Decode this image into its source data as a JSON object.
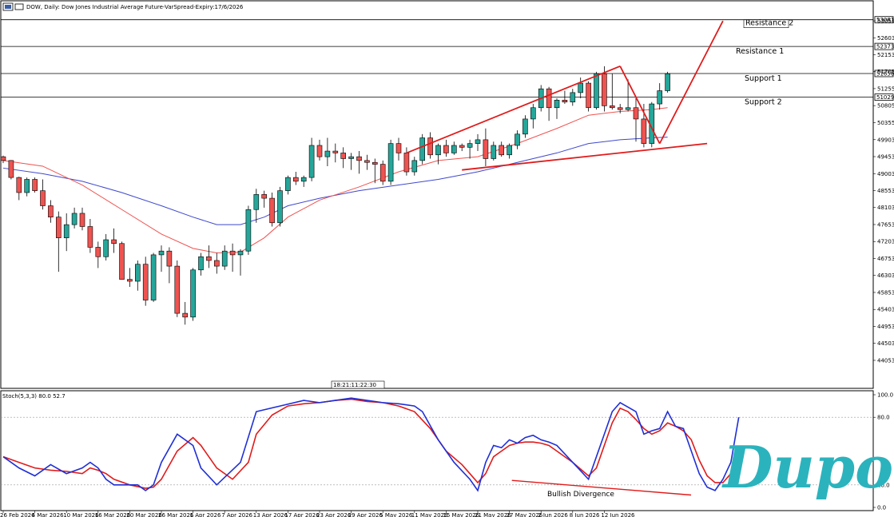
{
  "chart_data": {
    "type": "candlestick",
    "title": "DOW, Daily: Dow Jones Industrial Average Future-VarSpread-Expiry:17/6/2026",
    "colors": {
      "bull": "#26a69a",
      "bear": "#ef5350",
      "ma_fast": "#ef5350",
      "ma_slow": "#3f48cc",
      "stoch_k": "#1f2fd6",
      "stoch_d": "#e01b1b",
      "trend": "#e01b1b"
    },
    "y_axis": {
      "ticks": [
        53051,
        52603,
        52153,
        51705,
        51255,
        50805,
        50355,
        49903,
        49453,
        49003,
        48553,
        48103,
        47653,
        47203,
        46753,
        46303,
        45853,
        45403,
        44953,
        44503,
        44053
      ],
      "ylim": [
        43650,
        53350
      ],
      "highlight": [
        {
          "text": "53081",
          "value": 53081
        },
        {
          "text": "52373",
          "value": 52373
        },
        {
          "text": "51656",
          "value": 51656
        },
        {
          "text": "51029",
          "value": 51029
        }
      ]
    },
    "x_axis": {
      "labels": [
        {
          "text": "26 Feb 2026",
          "index": 0
        },
        {
          "text": "4 Mar 2026",
          "index": 4
        },
        {
          "text": "10 Mar 2026",
          "index": 8
        },
        {
          "text": "16 Mar 2026",
          "index": 12
        },
        {
          "text": "20 Mar 2026",
          "index": 16
        },
        {
          "text": "26 Mar 2026",
          "index": 20
        },
        {
          "text": "1 Apr 2026",
          "index": 24
        },
        {
          "text": "7 Apr 2026",
          "index": 28
        },
        {
          "text": "13 Apr 2026",
          "index": 32
        },
        {
          "text": "17 Apr 2026",
          "index": 36
        },
        {
          "text": "23 Apr 2026",
          "index": 40
        },
        {
          "text": "29 Apr 2026",
          "index": 44
        },
        {
          "text": "5 May 2026",
          "index": 48
        },
        {
          "text": "11 May 2026",
          "index": 52
        },
        {
          "text": "15 May 2026",
          "index": 56
        },
        {
          "text": "21 May 2026",
          "index": 60
        },
        {
          "text": "27 May 2026",
          "index": 64
        },
        {
          "text": "2 Jun 2026",
          "index": 68
        },
        {
          "text": "8 Jun 2026",
          "index": 72
        },
        {
          "text": "12 Jun 2026",
          "index": 76
        }
      ]
    },
    "candles": [
      [
        49450,
        49480,
        49280,
        49350
      ],
      [
        49350,
        49360,
        48850,
        48900
      ],
      [
        48900,
        48920,
        48300,
        48500
      ],
      [
        48500,
        48900,
        48400,
        48850
      ],
      [
        48850,
        48900,
        48500,
        48550
      ],
      [
        48550,
        48850,
        48050,
        48150
      ],
      [
        48150,
        48300,
        47700,
        47850
      ],
      [
        47850,
        48000,
        46400,
        47300
      ],
      [
        47300,
        47950,
        46950,
        47650
      ],
      [
        47650,
        48100,
        47550,
        47950
      ],
      [
        47950,
        48100,
        47500,
        47600
      ],
      [
        47600,
        47800,
        46900,
        47050
      ],
      [
        47050,
        47200,
        46500,
        46800
      ],
      [
        46800,
        47400,
        46700,
        47250
      ],
      [
        47250,
        47550,
        46900,
        47150
      ],
      [
        47150,
        47200,
        46200,
        46200
      ],
      [
        46200,
        46500,
        46000,
        46150
      ],
      [
        46150,
        46700,
        45900,
        46600
      ],
      [
        46600,
        46800,
        45500,
        45650
      ],
      [
        45650,
        46900,
        45600,
        46850
      ],
      [
        46850,
        47100,
        46400,
        46950
      ],
      [
        46950,
        47050,
        46100,
        46550
      ],
      [
        46550,
        46700,
        45200,
        45300
      ],
      [
        45300,
        45600,
        45000,
        45200
      ],
      [
        45200,
        46500,
        45100,
        46450
      ],
      [
        46450,
        46900,
        46300,
        46800
      ],
      [
        46800,
        47100,
        46500,
        46700
      ],
      [
        46700,
        46900,
        46350,
        46550
      ],
      [
        46550,
        47100,
        46450,
        46950
      ],
      [
        46950,
        47150,
        46400,
        46850
      ],
      [
        46850,
        47000,
        46300,
        46950
      ],
      [
        46950,
        48150,
        46850,
        48050
      ],
      [
        48050,
        48600,
        47700,
        48450
      ],
      [
        48450,
        48550,
        48100,
        48350
      ],
      [
        48350,
        48500,
        47600,
        47700
      ],
      [
        47700,
        48650,
        47600,
        48550
      ],
      [
        48550,
        48950,
        48450,
        48900
      ],
      [
        48900,
        49050,
        48700,
        48800
      ],
      [
        48800,
        48950,
        48650,
        48900
      ],
      [
        48900,
        49950,
        48800,
        49750
      ],
      [
        49750,
        49900,
        49350,
        49450
      ],
      [
        49450,
        49950,
        49200,
        49600
      ],
      [
        49600,
        49800,
        49300,
        49550
      ],
      [
        49550,
        49700,
        49150,
        49400
      ],
      [
        49400,
        49550,
        49100,
        49450
      ],
      [
        49450,
        49600,
        49000,
        49350
      ],
      [
        49350,
        49500,
        49100,
        49300
      ],
      [
        49300,
        49400,
        48750,
        49250
      ],
      [
        49250,
        49350,
        48700,
        48800
      ],
      [
        48800,
        49900,
        48700,
        49800
      ],
      [
        49800,
        49950,
        49350,
        49550
      ],
      [
        49550,
        49700,
        48950,
        49050
      ],
      [
        49050,
        49450,
        48950,
        49350
      ],
      [
        49350,
        50050,
        49250,
        49950
      ],
      [
        49950,
        50100,
        49400,
        49500
      ],
      [
        49500,
        49800,
        49250,
        49750
      ],
      [
        49750,
        49900,
        49450,
        49550
      ],
      [
        49550,
        49850,
        49500,
        49750
      ],
      [
        49750,
        49800,
        49600,
        49700
      ],
      [
        49700,
        49900,
        49400,
        49800
      ],
      [
        49800,
        50050,
        49600,
        49900
      ],
      [
        49900,
        50200,
        49200,
        49400
      ],
      [
        49400,
        49850,
        49350,
        49750
      ],
      [
        49750,
        49850,
        49450,
        49500
      ],
      [
        49500,
        49800,
        49400,
        49750
      ],
      [
        49750,
        50150,
        49650,
        50050
      ],
      [
        50050,
        50550,
        49950,
        50450
      ],
      [
        50450,
        50850,
        50200,
        50750
      ],
      [
        50750,
        51350,
        50650,
        51250
      ],
      [
        51250,
        51300,
        50400,
        50750
      ],
      [
        50750,
        51000,
        50450,
        50950
      ],
      [
        50950,
        51200,
        50850,
        50900
      ],
      [
        50900,
        51250,
        50800,
        51150
      ],
      [
        51150,
        51550,
        51000,
        51400
      ],
      [
        51400,
        51450,
        50650,
        50750
      ],
      [
        50750,
        51700,
        50700,
        51650
      ],
      [
        51650,
        51850,
        50650,
        50800
      ],
      [
        50800,
        51650,
        50700,
        50750
      ],
      [
        50750,
        50850,
        50600,
        50700
      ],
      [
        50700,
        51500,
        50650,
        50750
      ],
      [
        50750,
        51000,
        49850,
        50450
      ],
      [
        50450,
        50850,
        49700,
        49800
      ],
      [
        49800,
        50900,
        49700,
        50850
      ],
      [
        50850,
        51400,
        50700,
        51200
      ],
      [
        51200,
        51700,
        51150,
        51650
      ]
    ],
    "ma_fast": [
      [
        0,
        49350
      ],
      [
        5,
        49200
      ],
      [
        10,
        48700
      ],
      [
        15,
        48050
      ],
      [
        20,
        47400
      ],
      [
        24,
        47020
      ],
      [
        27,
        46900
      ],
      [
        30,
        46920
      ],
      [
        33,
        47300
      ],
      [
        36,
        47850
      ],
      [
        40,
        48300
      ],
      [
        45,
        48650
      ],
      [
        50,
        49050
      ],
      [
        55,
        49350
      ],
      [
        60,
        49450
      ],
      [
        65,
        49800
      ],
      [
        70,
        50200
      ],
      [
        74,
        50550
      ],
      [
        78,
        50650
      ],
      [
        82,
        50700
      ],
      [
        84,
        50750
      ]
    ],
    "ma_slow": [
      [
        0,
        49150
      ],
      [
        5,
        49000
      ],
      [
        10,
        48800
      ],
      [
        15,
        48500
      ],
      [
        20,
        48150
      ],
      [
        24,
        47850
      ],
      [
        27,
        47650
      ],
      [
        30,
        47650
      ],
      [
        33,
        47850
      ],
      [
        36,
        48150
      ],
      [
        40,
        48350
      ],
      [
        45,
        48550
      ],
      [
        50,
        48700
      ],
      [
        55,
        48850
      ],
      [
        60,
        49050
      ],
      [
        65,
        49300
      ],
      [
        70,
        49550
      ],
      [
        74,
        49800
      ],
      [
        78,
        49900
      ],
      [
        82,
        49950
      ],
      [
        84,
        49970
      ]
    ],
    "levels": [
      {
        "name": "Resistance 2",
        "value": 53081
      },
      {
        "name": "Resistance 1",
        "value": 52373
      },
      {
        "name": "Support 1",
        "value": 51656
      },
      {
        "name": "Support 2",
        "value": 51029
      }
    ],
    "trendlines": [
      {
        "points": [
          [
            51,
            49550
          ],
          [
            78,
            51850
          ]
        ]
      },
      {
        "points": [
          [
            78,
            51850
          ],
          [
            83,
            49800
          ]
        ]
      },
      {
        "points": [
          [
            83,
            49800
          ],
          [
            91,
            53050
          ]
        ]
      },
      {
        "points": [
          [
            58,
            49100
          ],
          [
            89,
            49800
          ]
        ]
      }
    ],
    "time_marker": "18:21:11:22:30",
    "stochastic": {
      "label": "Stoch(5,3,3) 80.0 52.7",
      "ticks": [
        "100.0",
        "80.0",
        "20.0",
        "0.0"
      ],
      "k": [
        [
          0,
          45
        ],
        [
          2,
          35
        ],
        [
          4,
          28
        ],
        [
          6,
          38
        ],
        [
          8,
          30
        ],
        [
          10,
          35
        ],
        [
          11,
          40
        ],
        [
          12,
          35
        ],
        [
          13,
          25
        ],
        [
          14,
          20
        ],
        [
          15,
          20
        ],
        [
          17,
          20
        ],
        [
          18,
          15
        ],
        [
          19,
          20
        ],
        [
          20,
          40
        ],
        [
          22,
          65
        ],
        [
          24,
          55
        ],
        [
          25,
          35
        ],
        [
          27,
          20
        ],
        [
          30,
          40
        ],
        [
          32,
          85
        ],
        [
          35,
          90
        ],
        [
          38,
          95
        ],
        [
          40,
          93
        ],
        [
          42,
          95
        ],
        [
          44,
          97
        ],
        [
          46,
          95
        ],
        [
          48,
          93
        ],
        [
          50,
          92
        ],
        [
          52,
          90
        ],
        [
          53,
          85
        ],
        [
          55,
          60
        ],
        [
          57,
          40
        ],
        [
          59,
          25
        ],
        [
          60,
          15
        ],
        [
          61,
          40
        ],
        [
          62,
          55
        ],
        [
          63,
          53
        ],
        [
          64,
          60
        ],
        [
          65,
          57
        ],
        [
          66,
          62
        ],
        [
          67,
          64
        ],
        [
          68,
          60
        ],
        [
          69,
          58
        ],
        [
          70,
          55
        ],
        [
          72,
          40
        ],
        [
          74,
          25
        ],
        [
          75,
          45
        ],
        [
          76,
          65
        ],
        [
          77,
          85
        ],
        [
          78,
          93
        ],
        [
          80,
          85
        ],
        [
          81,
          65
        ],
        [
          82,
          68
        ],
        [
          83,
          70
        ],
        [
          84,
          85
        ],
        [
          85,
          72
        ],
        [
          86,
          70
        ],
        [
          87,
          50
        ],
        [
          88,
          30
        ],
        [
          89,
          18
        ],
        [
          90,
          15
        ],
        [
          91,
          25
        ],
        [
          92,
          40
        ],
        [
          93,
          80
        ]
      ],
      "d": [
        [
          0,
          45
        ],
        [
          2,
          40
        ],
        [
          4,
          35
        ],
        [
          6,
          33
        ],
        [
          8,
          32
        ],
        [
          10,
          30
        ],
        [
          11,
          35
        ],
        [
          12,
          33
        ],
        [
          13,
          30
        ],
        [
          14,
          25
        ],
        [
          16,
          20
        ],
        [
          18,
          17
        ],
        [
          19,
          18
        ],
        [
          20,
          25
        ],
        [
          22,
          50
        ],
        [
          24,
          62
        ],
        [
          25,
          55
        ],
        [
          27,
          35
        ],
        [
          29,
          25
        ],
        [
          31,
          40
        ],
        [
          32,
          65
        ],
        [
          34,
          82
        ],
        [
          36,
          90
        ],
        [
          38,
          92
        ],
        [
          40,
          93
        ],
        [
          42,
          95
        ],
        [
          44,
          96
        ],
        [
          46,
          94
        ],
        [
          48,
          93
        ],
        [
          50,
          90
        ],
        [
          52,
          85
        ],
        [
          54,
          70
        ],
        [
          56,
          50
        ],
        [
          58,
          38
        ],
        [
          59,
          30
        ],
        [
          60,
          22
        ],
        [
          61,
          30
        ],
        [
          62,
          45
        ],
        [
          63,
          50
        ],
        [
          64,
          55
        ],
        [
          65,
          57
        ],
        [
          66,
          58
        ],
        [
          67,
          58
        ],
        [
          68,
          57
        ],
        [
          69,
          55
        ],
        [
          70,
          50
        ],
        [
          72,
          40
        ],
        [
          74,
          28
        ],
        [
          75,
          35
        ],
        [
          76,
          55
        ],
        [
          77,
          75
        ],
        [
          78,
          88
        ],
        [
          79,
          85
        ],
        [
          80,
          78
        ],
        [
          81,
          70
        ],
        [
          82,
          65
        ],
        [
          83,
          68
        ],
        [
          84,
          75
        ],
        [
          85,
          72
        ],
        [
          86,
          68
        ],
        [
          87,
          60
        ],
        [
          88,
          42
        ],
        [
          89,
          28
        ],
        [
          90,
          22
        ],
        [
          91,
          22
        ],
        [
          92,
          30
        ],
        [
          93,
          53
        ]
      ],
      "divergence_line": {
        "points": [
          [
            73,
            24
          ],
          [
            96,
            11
          ]
        ]
      },
      "divergence_label": "Bullish Divergence"
    }
  },
  "brand": {
    "logo_text": "Dupoin"
  }
}
